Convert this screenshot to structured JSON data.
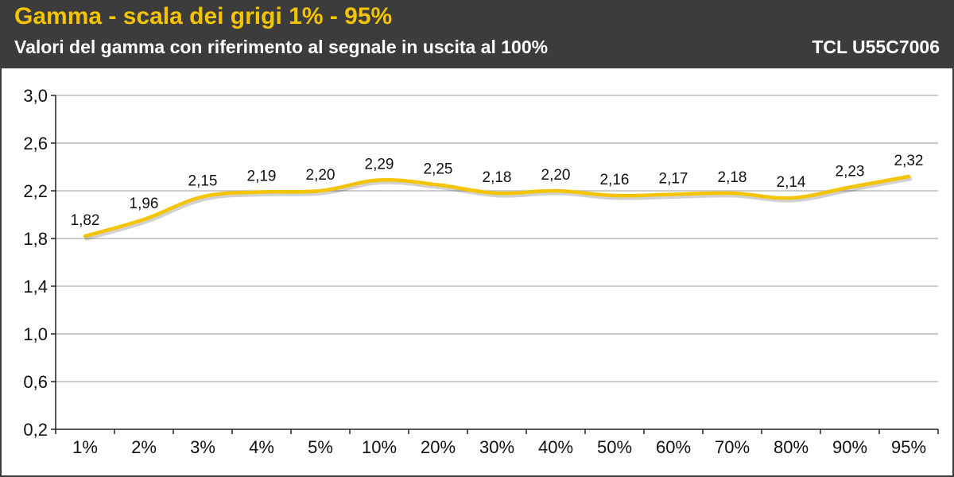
{
  "header": {
    "title": "Gamma - scala dei grigi 1% - 95%",
    "subtitle": "Valori del gamma con riferimento al segnale in uscita al 100%",
    "model": "TCL U55C7006"
  },
  "colors": {
    "header_bg": "#3c3c3c",
    "title": "#f5c400",
    "line": "#f5c400",
    "grid": "#bbbbbb"
  },
  "chart_data": {
    "type": "line",
    "title": "Gamma - scala dei grigi 1% - 95%",
    "subtitle": "Valori del gamma con riferimento al segnale in uscita al 100%",
    "categories": [
      "1%",
      "2%",
      "3%",
      "4%",
      "5%",
      "10%",
      "20%",
      "30%",
      "40%",
      "50%",
      "60%",
      "70%",
      "80%",
      "90%",
      "95%"
    ],
    "series": [
      {
        "values": [
          1.82,
          1.96,
          2.15,
          2.19,
          2.2,
          2.29,
          2.25,
          2.18,
          2.2,
          2.16,
          2.17,
          2.18,
          2.14,
          2.23,
          2.32
        ],
        "labels": [
          "1,82",
          "1,96",
          "2,15",
          "2,19",
          "2,20",
          "2,29",
          "2,25",
          "2,18",
          "2,20",
          "2,16",
          "2,17",
          "2,18",
          "2,14",
          "2,23",
          "2,32"
        ]
      }
    ],
    "ylim": [
      0.2,
      3.0
    ],
    "yticks": [
      0.2,
      0.6,
      1.0,
      1.4,
      1.8,
      2.2,
      2.6,
      3.0
    ],
    "ytick_labels": [
      "0,2",
      "0,6",
      "1,0",
      "1,4",
      "1,8",
      "2,2",
      "2,6",
      "3,0"
    ],
    "xlabel": "",
    "ylabel": "",
    "grid": true,
    "legend": "none",
    "smooth": true
  }
}
